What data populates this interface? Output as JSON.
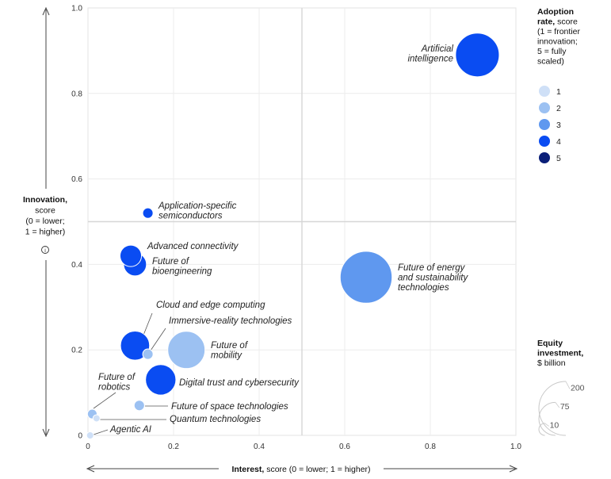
{
  "chart_data": {
    "type": "scatter",
    "xlabel_bold": "Interest,",
    "xlabel_rest": "score (0 = lower; 1 = higher)",
    "ylabel_lines": [
      "Innovation,",
      "score",
      "(0 = lower;",
      "1 = higher)"
    ],
    "xlim": [
      0,
      1
    ],
    "ylim": [
      0,
      1
    ],
    "x_ticks": [
      "0",
      "0.2",
      "0.4",
      "0.6",
      "0.8",
      "1.0"
    ],
    "y_ticks": [
      "0",
      "0.2",
      "0.4",
      "0.6",
      "0.8",
      "1.0"
    ],
    "quadrant_lines": {
      "x": 0.5,
      "y": 0.5
    },
    "adoption_colors": {
      "1": "#cfe0f7",
      "2": "#9cc1f2",
      "3": "#5f98ef",
      "4": "#0a4cf2",
      "5": "#0b1f78"
    },
    "points": [
      {
        "name": "Artificial intelligence",
        "label_lines": [
          "Artificial",
          "intelligence"
        ],
        "x": 0.91,
        "y": 0.89,
        "adoption": 4,
        "equity": 124
      },
      {
        "name": "Application-specific semiconductors",
        "label_lines": [
          "Application-specific",
          "semiconductors"
        ],
        "x": 0.14,
        "y": 0.52,
        "adoption": 4,
        "equity": 7
      },
      {
        "name": "Advanced connectivity",
        "label_lines": [
          "Advanced connectivity"
        ],
        "x": 0.1,
        "y": 0.42,
        "adoption": 4,
        "equity": 30
      },
      {
        "name": "Future of bioengineering",
        "label_lines": [
          "Future of",
          "bioengineering"
        ],
        "x": 0.11,
        "y": 0.4,
        "adoption": 4,
        "equity": 34
      },
      {
        "name": "Future of energy and sustainability technologies",
        "label_lines": [
          "Future of energy",
          "and sustainability",
          "technologies"
        ],
        "x": 0.65,
        "y": 0.37,
        "adoption": 3,
        "equity": 175
      },
      {
        "name": "Cloud and edge computing",
        "label_lines": [
          "Cloud and edge computing"
        ],
        "x": 0.11,
        "y": 0.21,
        "adoption": 4,
        "equity": 55
      },
      {
        "name": "Immersive-reality technologies",
        "label_lines": [
          "Immersive-reality technologies"
        ],
        "x": 0.14,
        "y": 0.19,
        "adoption": 2,
        "equity": 7
      },
      {
        "name": "Future of mobility",
        "label_lines": [
          "Future of",
          "mobility"
        ],
        "x": 0.23,
        "y": 0.2,
        "adoption": 2,
        "equity": 90
      },
      {
        "name": "Digital trust and cybersecurity",
        "label_lines": [
          "Digital trust and cybersecurity"
        ],
        "x": 0.17,
        "y": 0.13,
        "adoption": 4,
        "equity": 60
      },
      {
        "name": "Future of robotics",
        "label_lines": [
          "Future of",
          "robotics"
        ],
        "x": 0.01,
        "y": 0.05,
        "adoption": 2,
        "equity": 6
      },
      {
        "name": "Future of space technologies",
        "label_lines": [
          "Future of space technologies"
        ],
        "x": 0.12,
        "y": 0.07,
        "adoption": 2,
        "equity": 7
      },
      {
        "name": "Quantum technologies",
        "label_lines": [
          "Quantum technologies"
        ],
        "x": 0.02,
        "y": 0.04,
        "adoption": 1,
        "equity": 2
      },
      {
        "name": "Agentic AI",
        "label_lines": [
          "Agentic AI"
        ],
        "x": 0.005,
        "y": 0.0,
        "adoption": 1,
        "equity": 1
      }
    ],
    "legend_adoption": {
      "title_bold": "Adoption",
      "title_lines": [
        "rate, score",
        "(1 = frontier",
        "innovation;",
        "5 = fully",
        "scaled)"
      ],
      "items": [
        {
          "label": "1",
          "color": "#cfe0f7"
        },
        {
          "label": "2",
          "color": "#9cc1f2"
        },
        {
          "label": "3",
          "color": "#5f98ef"
        },
        {
          "label": "4",
          "color": "#0a4cf2"
        },
        {
          "label": "5",
          "color": "#0b1f78"
        }
      ]
    },
    "legend_size": {
      "title_bold_lines": [
        "Equity",
        "investment,"
      ],
      "title_rest": "$ billion",
      "values": [
        200,
        75,
        10
      ]
    }
  },
  "info_icon": "info-icon"
}
